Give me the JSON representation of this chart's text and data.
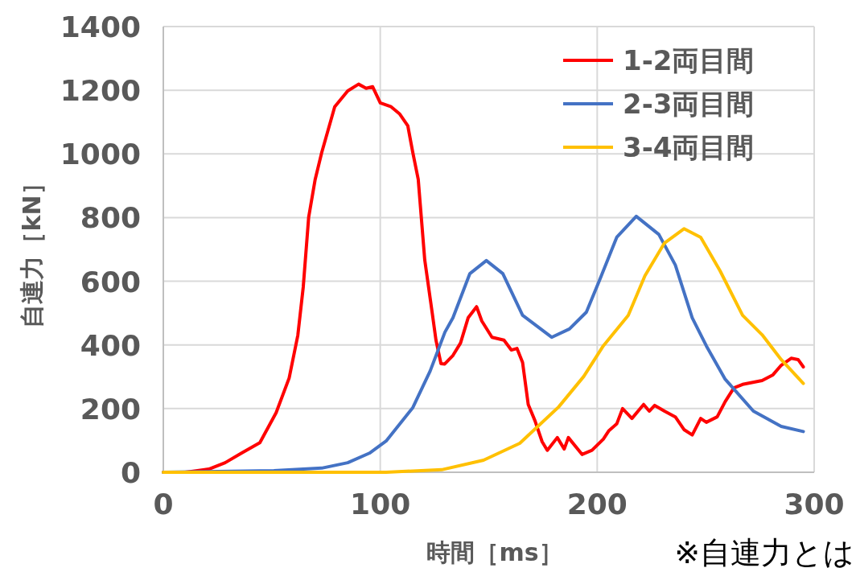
{
  "chart_data": {
    "type": "line",
    "xlabel": "時間［ms］",
    "ylabel": "自連力［kN］",
    "xlim": [
      0,
      300
    ],
    "ylim": [
      0,
      1400
    ],
    "xticks": [
      0,
      100,
      200,
      300
    ],
    "yticks": [
      0,
      200,
      400,
      600,
      800,
      1000,
      1200,
      1400
    ],
    "grid": true,
    "legend": "top right",
    "marker": "none",
    "line_style": "solid",
    "annotations": [
      "※自連力とは"
    ],
    "series": [
      {
        "name": "1-2両目間",
        "color": "#ff0000",
        "x": [
          0,
          10,
          13.7,
          21,
          28.5,
          36,
          44.5,
          52,
          58,
          62,
          64.5,
          67,
          70,
          73,
          79,
          85,
          90,
          93.5,
          96.5,
          100,
          105,
          109,
          112.7,
          115,
          117.5,
          120.5,
          124,
          125.7,
          128,
          129.7,
          133.5,
          137,
          140.5,
          144.4,
          146.8,
          151.5,
          157,
          160.4,
          163,
          165.6,
          168.2,
          171.3,
          174.6,
          177,
          181.6,
          184.8,
          186.7,
          193,
          197.6,
          202.8,
          205.3,
          209,
          211.7,
          216,
          221.4,
          224,
          226.5,
          231,
          236,
          240,
          243.8,
          247.7,
          250.3,
          255.3,
          259,
          263,
          267,
          276,
          281,
          284.8,
          289.4,
          292.6,
          295
        ],
        "values": [
          0,
          0,
          3,
          10,
          30,
          60,
          93,
          187,
          296,
          430,
          582,
          801,
          920,
          1004,
          1148,
          1198,
          1219,
          1206,
          1211,
          1160,
          1148,
          1125,
          1088,
          1004,
          920,
          667,
          498,
          414,
          341,
          340,
          367,
          406,
          485,
          520,
          475,
          424,
          415,
          384,
          389,
          345,
          213,
          162,
          96,
          69,
          109,
          73,
          109,
          56,
          69,
          104,
          130,
          152,
          200,
          169,
          213,
          192,
          210,
          192,
          174,
          134,
          117,
          169,
          157,
          174,
          222,
          265,
          276,
          288,
          306,
          336,
          358,
          354,
          331
        ]
      },
      {
        "name": "2-3両目間",
        "color": "#4472c4",
        "x": [
          0,
          51,
          73,
          85,
          95,
          102.7,
          115,
          123,
          129.8,
          133.5,
          141.3,
          148.9,
          156.5,
          165.6,
          179,
          187.2,
          195,
          201.3,
          209,
          218,
          228.4,
          236,
          243.8,
          250.3,
          259,
          272,
          284.8,
          295
        ],
        "values": [
          0,
          5,
          13,
          30,
          60,
          98,
          203,
          318,
          440,
          485,
          624,
          665,
          624,
          493,
          424,
          450,
          503,
          607,
          738,
          804,
          747,
          651,
          485,
          397,
          292,
          192,
          144,
          128
        ]
      },
      {
        "name": "3-4両目間",
        "color": "#ffc000",
        "x": [
          0,
          102.7,
          128.3,
          147.6,
          164.3,
          182.2,
          193.8,
          202.8,
          214.3,
          222,
          231,
          240,
          247.7,
          256.6,
          267,
          276,
          284.8,
          295
        ],
        "values": [
          0,
          0,
          8,
          38,
          91,
          205,
          301,
          397,
          493,
          617,
          720,
          765,
          738,
          633,
          493,
          432,
          354,
          279
        ]
      }
    ]
  }
}
